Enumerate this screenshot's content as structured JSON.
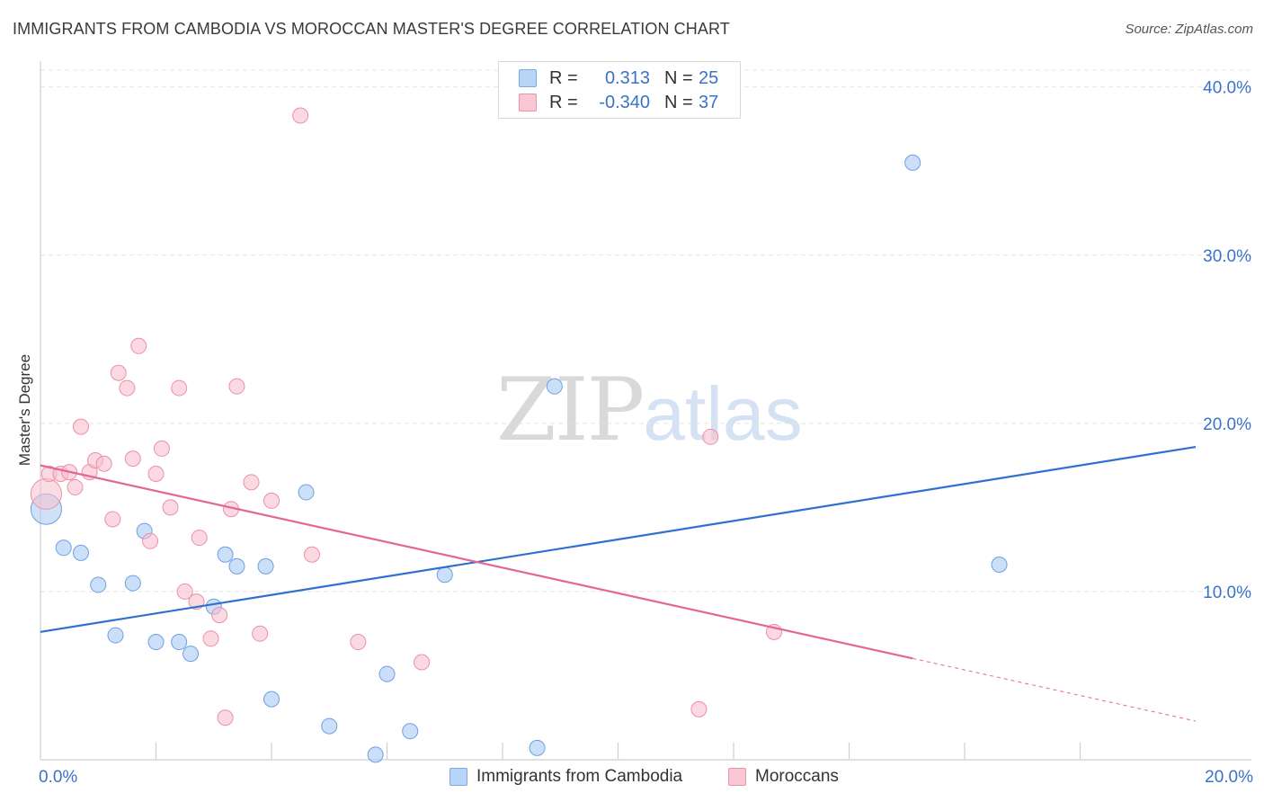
{
  "header": {
    "title": "IMMIGRANTS FROM CAMBODIA VS MOROCCAN MASTER'S DEGREE CORRELATION CHART",
    "source": "Source: ZipAtlas.com"
  },
  "watermark": {
    "zip": "ZIP",
    "atlas": "atlas"
  },
  "legend": {
    "rows": [
      {
        "r_label": "R =",
        "r_value": "0.313",
        "n_label": "N =",
        "n_value": "25",
        "color": "#b8d4f6",
        "border": "#7aaae6"
      },
      {
        "r_label": "R =",
        "r_value": "-0.340",
        "n_label": "N =",
        "n_value": "37",
        "color": "#f9c6d4",
        "border": "#ee93ad"
      }
    ]
  },
  "bottom_legend": [
    {
      "label": "Immigrants from Cambodia",
      "color": "#b8d4f6",
      "border": "#7aaae6"
    },
    {
      "label": "Moroccans",
      "color": "#f9c6d4",
      "border": "#ee93ad"
    }
  ],
  "chart_data": {
    "type": "scatter",
    "title": "IMMIGRANTS FROM CAMBODIA VS MOROCCAN MASTER'S DEGREE CORRELATION CHART",
    "xlabel": "",
    "ylabel": "Master's Degree",
    "xlim": [
      0,
      20
    ],
    "ylim": [
      0,
      41
    ],
    "x_tick_labels": [
      {
        "value": 0,
        "label": "0.0%"
      },
      {
        "value": 20,
        "label": "20.0%"
      }
    ],
    "x_minor_ticks": [
      2,
      4,
      6,
      8,
      10,
      12,
      14,
      16,
      18
    ],
    "y_ticks": [
      {
        "value": 10,
        "label": "10.0%"
      },
      {
        "value": 20,
        "label": "20.0%"
      },
      {
        "value": 30,
        "label": "30.0%"
      },
      {
        "value": 40,
        "label": "40.0%"
      }
    ],
    "grid": true,
    "series": [
      {
        "name": "Immigrants from Cambodia",
        "color": "#a9cbf3",
        "stroke": "#6f9fe0",
        "trend_color": "#2f6fcf",
        "trend": {
          "x0": 0,
          "y0": 7.6,
          "x1": 20,
          "y1": 18.6,
          "dashed_from": null
        },
        "points": [
          {
            "x": 0.1,
            "y": 14.9,
            "big": true
          },
          {
            "x": 0.4,
            "y": 12.6
          },
          {
            "x": 0.7,
            "y": 12.3
          },
          {
            "x": 1.0,
            "y": 10.4
          },
          {
            "x": 1.3,
            "y": 7.4
          },
          {
            "x": 1.6,
            "y": 10.5
          },
          {
            "x": 1.8,
            "y": 13.6
          },
          {
            "x": 2.0,
            "y": 7.0
          },
          {
            "x": 2.4,
            "y": 7.0
          },
          {
            "x": 2.6,
            "y": 6.3
          },
          {
            "x": 3.0,
            "y": 9.1
          },
          {
            "x": 3.2,
            "y": 12.2
          },
          {
            "x": 3.4,
            "y": 11.5
          },
          {
            "x": 3.9,
            "y": 11.5
          },
          {
            "x": 4.0,
            "y": 3.6
          },
          {
            "x": 4.6,
            "y": 15.9
          },
          {
            "x": 5.0,
            "y": 2.0
          },
          {
            "x": 5.8,
            "y": 0.3
          },
          {
            "x": 6.0,
            "y": 5.1
          },
          {
            "x": 6.4,
            "y": 1.7
          },
          {
            "x": 7.0,
            "y": 11.0
          },
          {
            "x": 8.6,
            "y": 0.7
          },
          {
            "x": 8.9,
            "y": 22.2
          },
          {
            "x": 15.1,
            "y": 35.5
          },
          {
            "x": 16.6,
            "y": 11.6
          }
        ]
      },
      {
        "name": "Moroccans",
        "color": "#f8c0d0",
        "stroke": "#ec8fa9",
        "trend_color": "#e2688f",
        "trend": {
          "x0": 0,
          "y0": 17.5,
          "x1": 20,
          "y1": 2.3,
          "dashed_from": 15.1
        },
        "points": [
          {
            "x": 0.1,
            "y": 15.8,
            "big": true
          },
          {
            "x": 0.15,
            "y": 17.0
          },
          {
            "x": 0.35,
            "y": 17.0
          },
          {
            "x": 0.5,
            "y": 17.1
          },
          {
            "x": 0.6,
            "y": 16.2
          },
          {
            "x": 0.7,
            "y": 19.8
          },
          {
            "x": 0.85,
            "y": 17.1
          },
          {
            "x": 0.95,
            "y": 17.8
          },
          {
            "x": 1.1,
            "y": 17.6
          },
          {
            "x": 1.25,
            "y": 14.3
          },
          {
            "x": 1.35,
            "y": 23.0
          },
          {
            "x": 1.5,
            "y": 22.1
          },
          {
            "x": 1.6,
            "y": 17.9
          },
          {
            "x": 1.7,
            "y": 24.6
          },
          {
            "x": 1.9,
            "y": 13.0
          },
          {
            "x": 2.0,
            "y": 17.0
          },
          {
            "x": 2.1,
            "y": 18.5
          },
          {
            "x": 2.25,
            "y": 15.0
          },
          {
            "x": 2.4,
            "y": 22.1
          },
          {
            "x": 2.5,
            "y": 10.0
          },
          {
            "x": 2.7,
            "y": 9.4
          },
          {
            "x": 2.75,
            "y": 13.2
          },
          {
            "x": 2.95,
            "y": 7.2
          },
          {
            "x": 3.1,
            "y": 8.6
          },
          {
            "x": 3.2,
            "y": 2.5
          },
          {
            "x": 3.3,
            "y": 14.9
          },
          {
            "x": 3.4,
            "y": 22.2
          },
          {
            "x": 3.65,
            "y": 16.5
          },
          {
            "x": 3.8,
            "y": 7.5
          },
          {
            "x": 4.0,
            "y": 15.4
          },
          {
            "x": 4.5,
            "y": 38.3
          },
          {
            "x": 4.7,
            "y": 12.2
          },
          {
            "x": 5.5,
            "y": 7.0
          },
          {
            "x": 6.6,
            "y": 5.8
          },
          {
            "x": 11.4,
            "y": 3.0
          },
          {
            "x": 11.6,
            "y": 19.2
          },
          {
            "x": 12.7,
            "y": 7.6
          }
        ]
      }
    ]
  }
}
